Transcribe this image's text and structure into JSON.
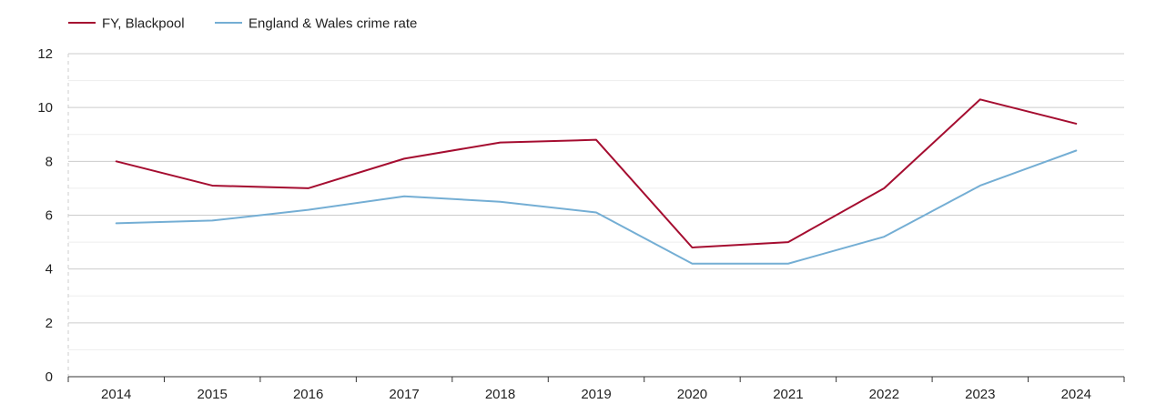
{
  "chart_data": {
    "type": "line",
    "title": "",
    "xlabel": "",
    "ylabel": "",
    "categories": [
      "2014",
      "2015",
      "2016",
      "2017",
      "2018",
      "2019",
      "2020",
      "2021",
      "2022",
      "2023",
      "2024"
    ],
    "ylim": [
      0,
      12
    ],
    "yticks": [
      0,
      2,
      4,
      6,
      8,
      10,
      12
    ],
    "grid": true,
    "legend_position": "top-left",
    "series": [
      {
        "name": "FY, Blackpool",
        "color": "#a50d30",
        "values": [
          8.0,
          7.1,
          7.0,
          8.1,
          8.7,
          8.8,
          4.8,
          5.0,
          7.0,
          10.3,
          9.4
        ]
      },
      {
        "name": "England & Wales crime rate",
        "color": "#74aed4",
        "values": [
          5.7,
          5.8,
          6.2,
          6.7,
          6.5,
          6.1,
          4.2,
          4.2,
          5.2,
          7.1,
          8.4
        ]
      }
    ]
  }
}
